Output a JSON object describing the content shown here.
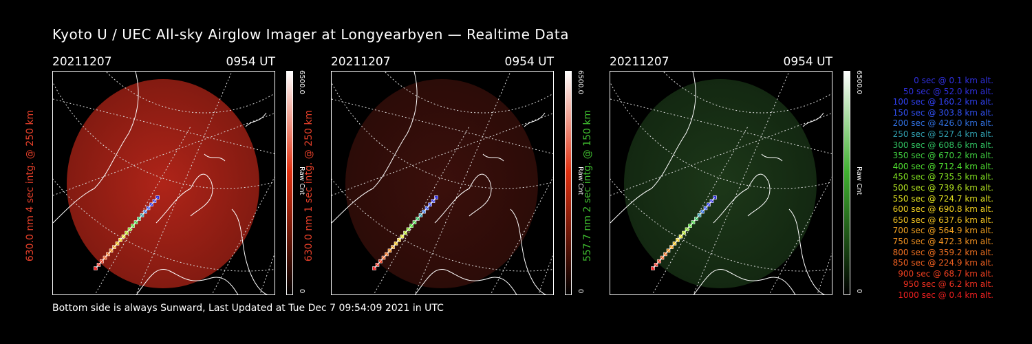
{
  "title": "Kyoto U / UEC All-sky Airglow Imager at Longyearbyen — Realtime Data",
  "footer": "Bottom side is always Sunward, Last Updated at Tue Dec  7 09:54:09 2021 in UTC",
  "panels": [
    {
      "date": "20211207",
      "time": "0954 UT",
      "ylabel": "630.0 nm 4 sec intg. @ 250 km",
      "label_color": "#e8402a",
      "cbar_max": "6500.0",
      "cbar_min": "0",
      "cbar_label": "Raw Cnt",
      "cbar_color": "#e03010",
      "glow": {
        "c1": "#b8261a",
        "c2": "#8a1c12",
        "opacity": 0.95
      }
    },
    {
      "date": "20211207",
      "time": "0954 UT",
      "ylabel": "630.0 nm 1 sec intg. @ 250 km",
      "label_color": "#e8402a",
      "cbar_max": "6500.0",
      "cbar_min": "0",
      "cbar_label": "Raw Cnt",
      "cbar_color": "#e03010",
      "glow": {
        "c1": "#3e100c",
        "c2": "#2e0c08",
        "opacity": 0.95
      }
    },
    {
      "date": "20211207",
      "time": "0954 UT",
      "ylabel": "557.7 nm 2 sec intg. @ 150 km",
      "label_color": "#40c030",
      "cbar_max": "6500.0",
      "cbar_min": "0",
      "cbar_label": "Raw Cnt",
      "cbar_color": "#40b030",
      "glow": {
        "c1": "#1e3a1a",
        "c2": "#142a12",
        "opacity": 0.95
      }
    }
  ],
  "legend": [
    {
      "text": "0 sec @   0.1 km alt.",
      "color": "#3030e0"
    },
    {
      "text": "50 sec @  52.0 km alt.",
      "color": "#3030e0"
    },
    {
      "text": "100 sec @ 160.2 km alt.",
      "color": "#3040f0"
    },
    {
      "text": "150 sec @ 303.8 km alt.",
      "color": "#3050f0"
    },
    {
      "text": "200 sec @ 426.0 km alt.",
      "color": "#3070e0"
    },
    {
      "text": "250 sec @ 527.4 km alt.",
      "color": "#30a0b0"
    },
    {
      "text": "300 sec @ 608.6 km alt.",
      "color": "#30c060"
    },
    {
      "text": "350 sec @ 670.2 km alt.",
      "color": "#40d040"
    },
    {
      "text": "400 sec @ 712.4 km alt.",
      "color": "#50e030"
    },
    {
      "text": "450 sec @ 735.5 km alt.",
      "color": "#80e020"
    },
    {
      "text": "500 sec @ 739.6 km alt.",
      "color": "#b0e020"
    },
    {
      "text": "550 sec @ 724.7 km alt.",
      "color": "#e0e020"
    },
    {
      "text": "600 sec @ 690.8 km alt.",
      "color": "#f0d020"
    },
    {
      "text": "650 sec @ 637.6 km alt.",
      "color": "#f0c020"
    },
    {
      "text": "700 sec @ 564.9 km alt.",
      "color": "#f0a020"
    },
    {
      "text": "750 sec @ 472.3 km alt.",
      "color": "#f09020"
    },
    {
      "text": "800 sec @ 359.2 km alt.",
      "color": "#f07020"
    },
    {
      "text": "850 sec @ 224.9 km alt.",
      "color": "#f06020"
    },
    {
      "text": "900 sec @  68.7 km alt.",
      "color": "#f04020"
    },
    {
      "text": "950 sec @   6.2 km alt.",
      "color": "#f03020"
    },
    {
      "text": "1000 sec @   0.4 km alt.",
      "color": "#f02020"
    }
  ]
}
